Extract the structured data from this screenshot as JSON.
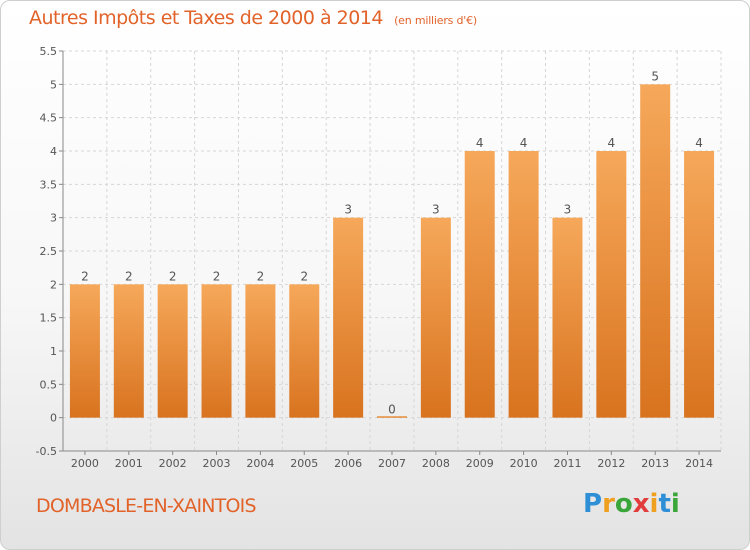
{
  "header": {
    "title": "Autres Impôts et Taxes de 2000 à 2014",
    "subtitle": "(en milliers d'€)"
  },
  "footer": {
    "commune": "DOMBASLE-EN-XAINTOIS"
  },
  "logo": {
    "letters": [
      "P",
      "r",
      "o",
      "x",
      "i",
      "t",
      "i"
    ],
    "colors": [
      "#2e8fd6",
      "#f0a020",
      "#3aa63a",
      "#e23c3c",
      "#f0a020",
      "#2e8fd6",
      "#3aa63a"
    ]
  },
  "colors": {
    "bar_top": "#f6a85a",
    "bar_bottom": "#d8731f",
    "text": "#e2632a",
    "axis_text": "#555555",
    "grid": "#d6d6d6"
  },
  "chart_data": {
    "type": "bar",
    "categories": [
      "2000",
      "2001",
      "2002",
      "2003",
      "2004",
      "2005",
      "2006",
      "2007",
      "2008",
      "2009",
      "2010",
      "2011",
      "2012",
      "2013",
      "2014"
    ],
    "values": [
      2,
      2,
      2,
      2,
      2,
      2,
      3,
      0,
      3,
      4,
      4,
      3,
      4,
      5,
      4
    ],
    "data_labels": [
      "2",
      "2",
      "2",
      "2",
      "2",
      "2",
      "3",
      "0",
      "3",
      "4",
      "4",
      "3",
      "4",
      "5",
      "4"
    ],
    "y_ticks": [
      "-0.5",
      "0",
      "0.5",
      "1",
      "1.5",
      "2",
      "2.5",
      "3",
      "3.5",
      "4",
      "4.5",
      "5",
      "5.5"
    ],
    "ylim": [
      -0.5,
      5.5
    ],
    "grid": true
  }
}
